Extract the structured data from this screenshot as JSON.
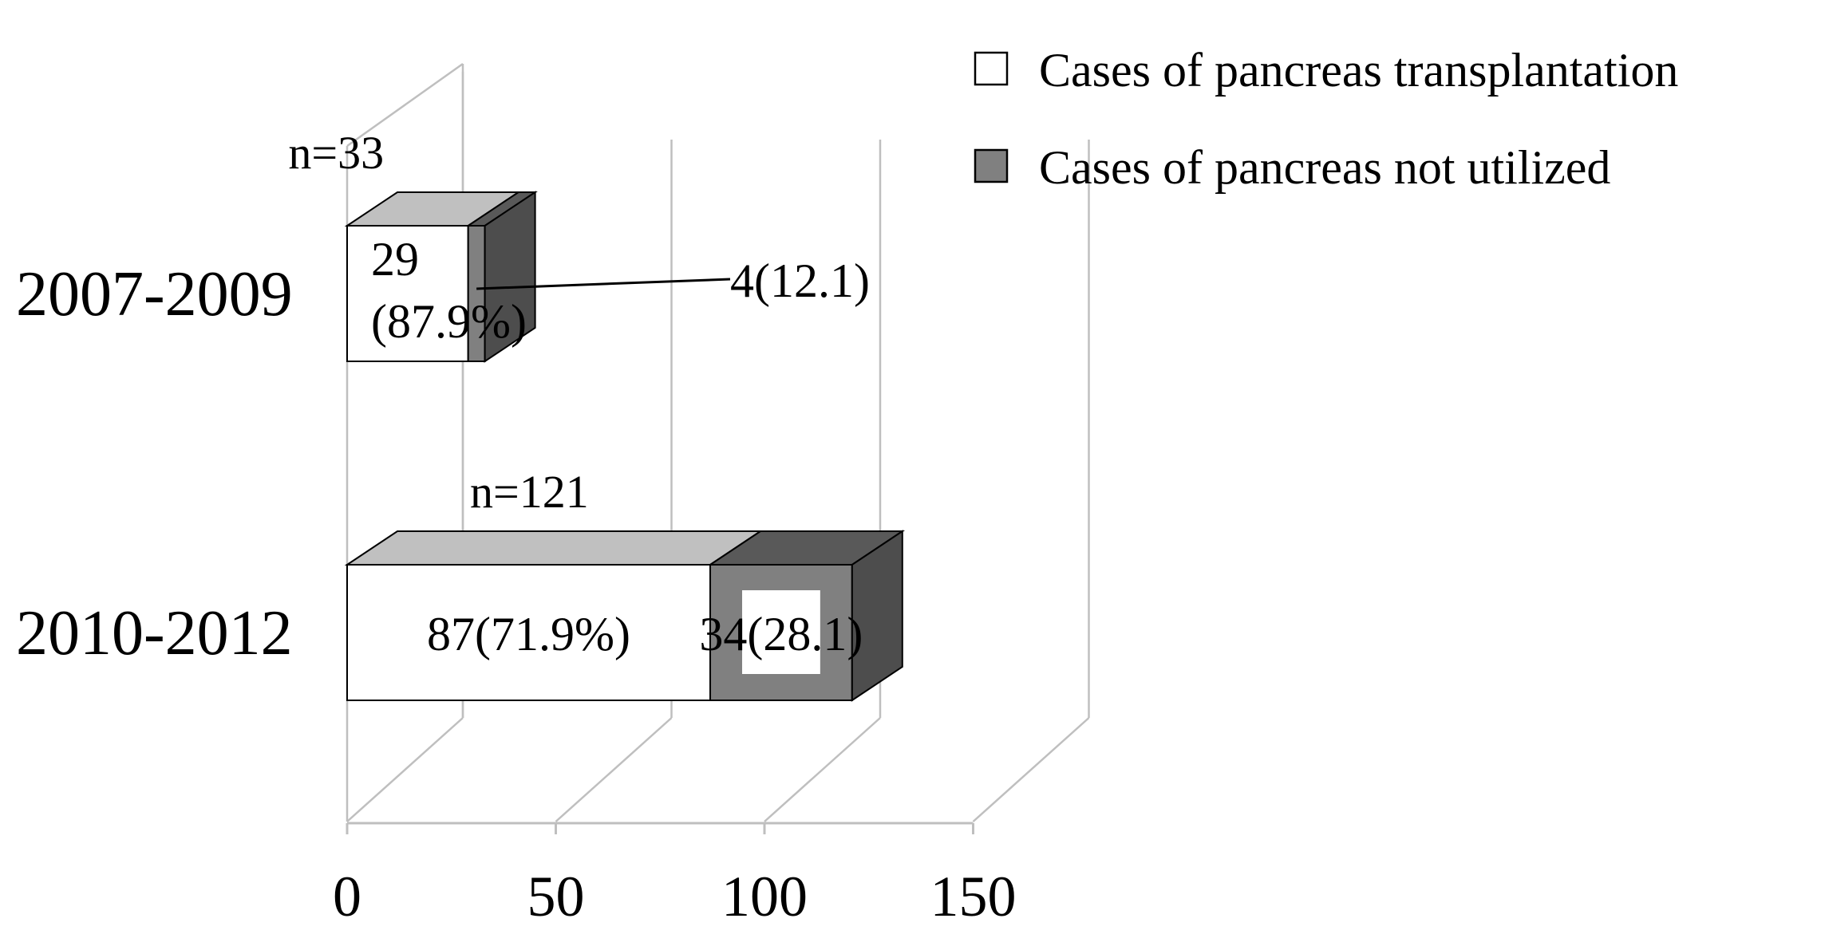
{
  "chart_data": {
    "type": "bar",
    "orientation": "horizontal",
    "stacked": true,
    "three_d": true,
    "categories": [
      "2007-2009",
      "2010-2012"
    ],
    "series": [
      {
        "name": "Cases of pancreas transplantation",
        "values": [
          29,
          87
        ],
        "labels": [
          "29\n(87.9%)",
          "87(71.9%)"
        ],
        "color": "#ffffff"
      },
      {
        "name": "Cases of pancreas not utilized",
        "values": [
          4,
          34
        ],
        "labels": [
          "4(12.1)",
          "34(28.1)"
        ],
        "color": "#808080"
      }
    ],
    "totals": [
      "n=33",
      "n=121"
    ],
    "xlim": [
      0,
      150
    ],
    "xticks": [
      0,
      50,
      100,
      150
    ],
    "xtick_labels": [
      "0",
      "50",
      "100",
      "150"
    ],
    "gridlines": true,
    "legend_position": "top-right",
    "colors": {
      "front_face": "#ffffff",
      "top_face_light": "#c0c0c0",
      "front_face_dark": "#808080",
      "side_face_dark": "#4d4d4d",
      "top_face_dark": "#595959",
      "grid": "#bfbfbf"
    }
  }
}
